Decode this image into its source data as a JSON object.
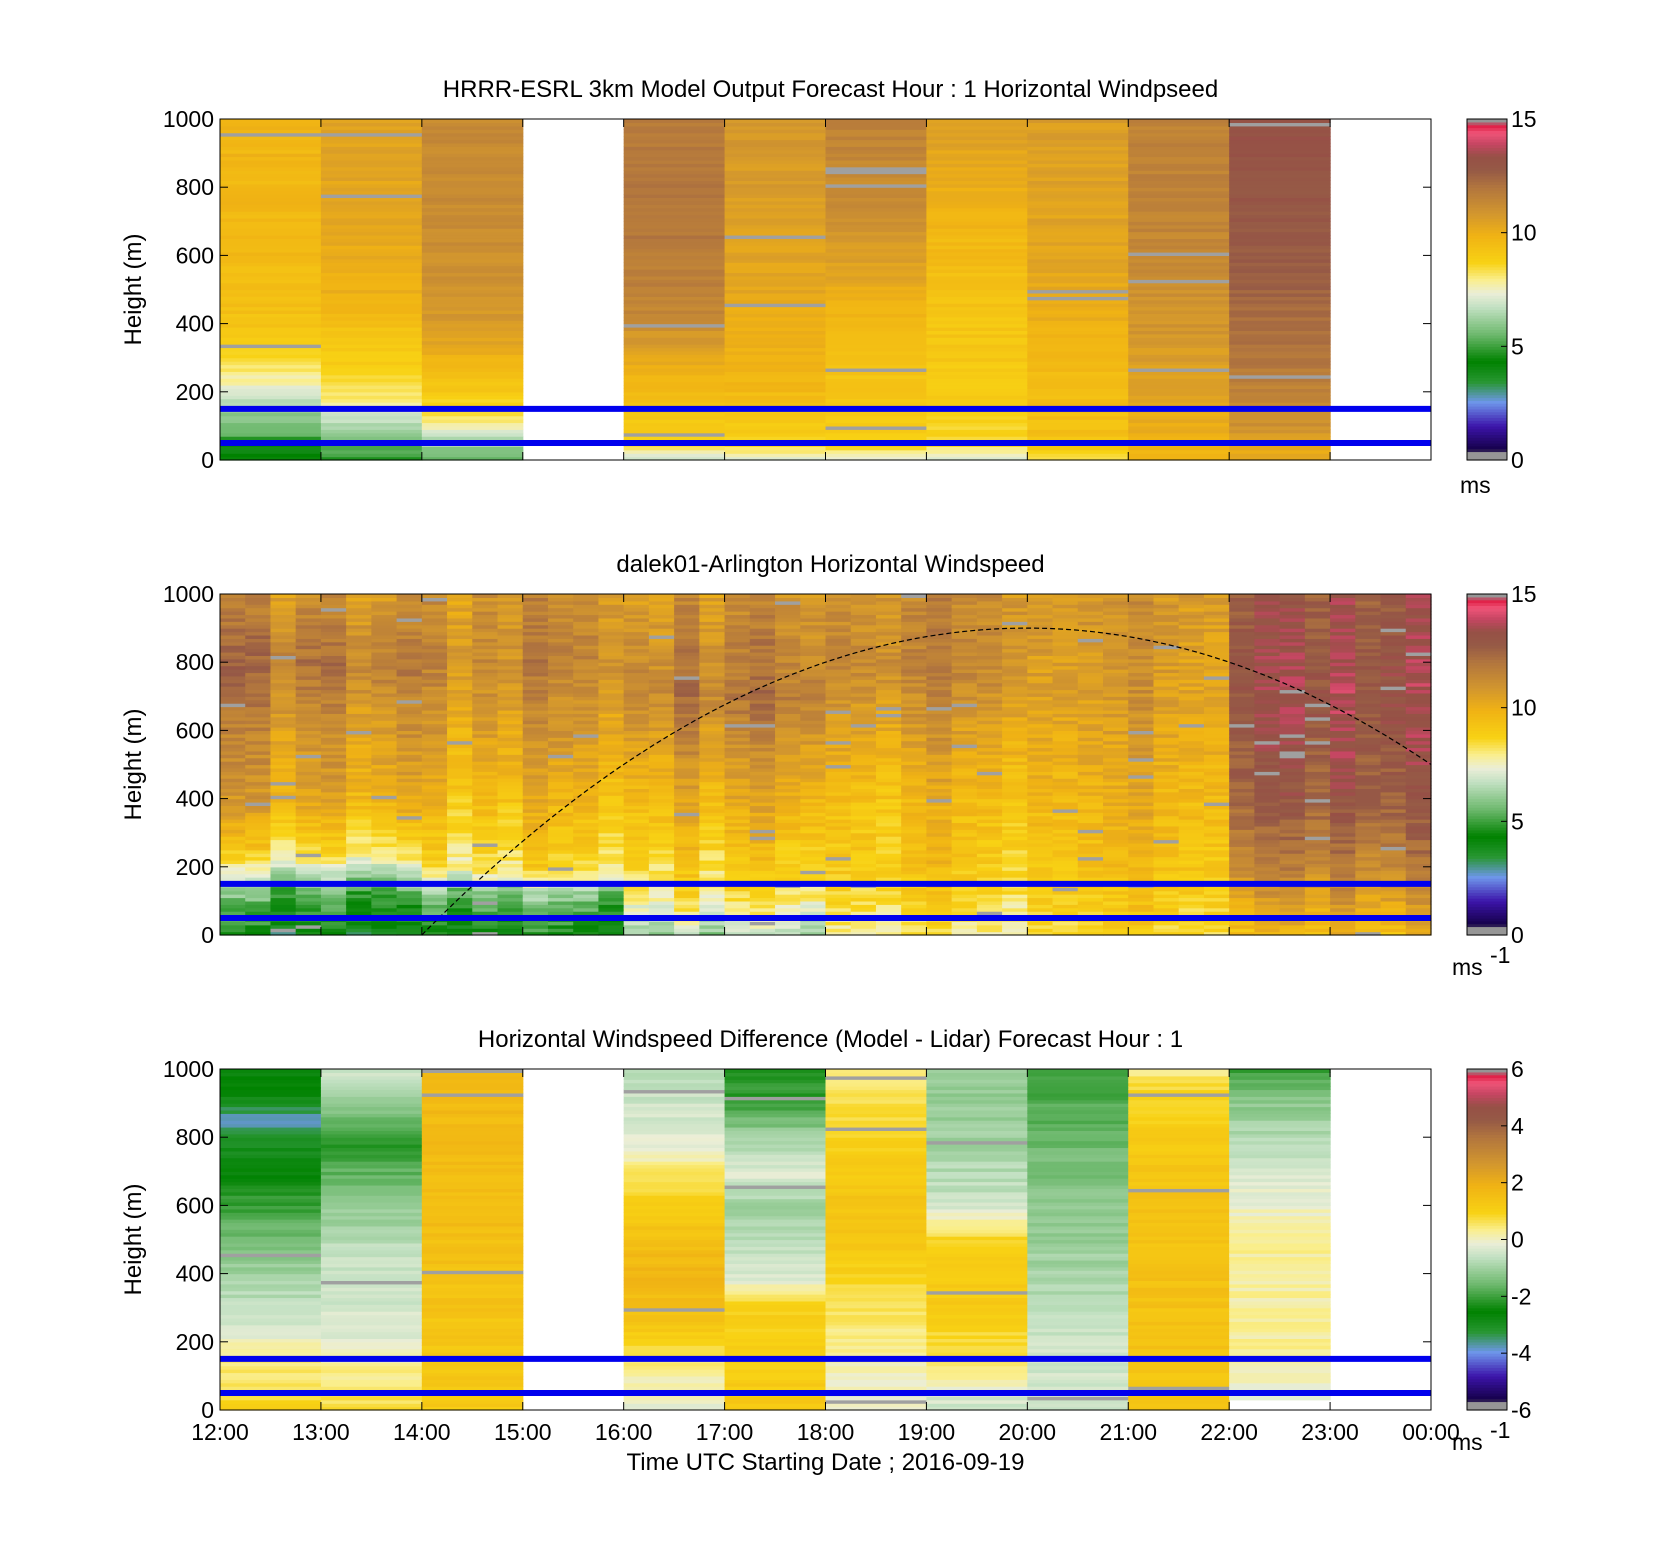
{
  "chart_data": [
    {
      "type": "heatmap",
      "title": "HRRR-ESRL 3km Model Output   Forecast Hour : 1 Horizontal Windpseed",
      "ylabel": "Height (m)",
      "xlabel": "",
      "ylim": [
        0,
        1000
      ],
      "yticks": [
        "0",
        "200",
        "400",
        "600",
        "800",
        "1000"
      ],
      "xlim_hours_utc": [
        12,
        24
      ],
      "colorbar": {
        "min": 0,
        "max": 15,
        "ticks": [
          "0",
          "5",
          "10",
          "15"
        ],
        "unit_label": "ms",
        "unit_sup": ""
      },
      "reference_lines_m": [
        150,
        50
      ],
      "reference_line_color": "#0000ee",
      "columns": [
        {
          "start": "12:00",
          "end": "13:00",
          "bottom_m": 0,
          "top_m": 1000,
          "profile": [
            [
              0,
              4.5
            ],
            [
              40,
              4.0
            ],
            [
              80,
              5.5
            ],
            [
              150,
              6.2
            ],
            [
              210,
              7.4
            ],
            [
              260,
              8.0
            ],
            [
              320,
              8.8
            ],
            [
              400,
              9.3
            ],
            [
              600,
              9.6
            ],
            [
              1000,
              9.8
            ]
          ]
        },
        {
          "start": "13:00",
          "end": "14:00",
          "bottom_m": 0,
          "top_m": 1000,
          "profile": [
            [
              0,
              4.8
            ],
            [
              60,
              5.6
            ],
            [
              130,
              7.0
            ],
            [
              190,
              8.2
            ],
            [
              260,
              8.8
            ],
            [
              350,
              9.2
            ],
            [
              500,
              10.0
            ],
            [
              1000,
              10.5
            ]
          ]
        },
        {
          "start": "14:00",
          "end": "15:00",
          "bottom_m": 0,
          "top_m": 1000,
          "profile": [
            [
              0,
              5.5
            ],
            [
              60,
              6.5
            ],
            [
              110,
              8.0
            ],
            [
              180,
              8.8
            ],
            [
              260,
              9.6
            ],
            [
              400,
              10.8
            ],
            [
              700,
              11.2
            ],
            [
              1000,
              11.3
            ]
          ]
        },
        {
          "start": "16:00",
          "end": "17:00",
          "bottom_m": 0,
          "top_m": 1000,
          "profile": [
            [
              0,
              6.5
            ],
            [
              40,
              8.6
            ],
            [
              120,
              9.2
            ],
            [
              230,
              9.8
            ],
            [
              360,
              10.8
            ],
            [
              450,
              11.5
            ],
            [
              700,
              12.0
            ],
            [
              1000,
              11.8
            ]
          ]
        },
        {
          "start": "17:00",
          "end": "18:00",
          "bottom_m": 0,
          "top_m": 1000,
          "profile": [
            [
              0,
              7.2
            ],
            [
              50,
              8.8
            ],
            [
              200,
              9.6
            ],
            [
              400,
              10.1
            ],
            [
              700,
              10.6
            ],
            [
              1000,
              10.8
            ]
          ]
        },
        {
          "start": "18:00",
          "end": "19:00",
          "bottom_m": 0,
          "top_m": 1000,
          "profile": [
            [
              0,
              7.3
            ],
            [
              50,
              8.8
            ],
            [
              250,
              9.3
            ],
            [
              450,
              9.9
            ],
            [
              600,
              10.6
            ],
            [
              750,
              11.2
            ],
            [
              1000,
              11.6
            ]
          ]
        },
        {
          "start": "19:00",
          "end": "20:00",
          "bottom_m": 0,
          "top_m": 1000,
          "profile": [
            [
              0,
              7.0
            ],
            [
              50,
              8.6
            ],
            [
              200,
              9.0
            ],
            [
              450,
              9.2
            ],
            [
              700,
              9.8
            ],
            [
              900,
              10.3
            ],
            [
              1000,
              10.6
            ]
          ]
        },
        {
          "start": "20:00",
          "end": "21:00",
          "bottom_m": 0,
          "top_m": 1000,
          "profile": [
            [
              0,
              8.3
            ],
            [
              60,
              9.3
            ],
            [
              250,
              9.6
            ],
            [
              550,
              10.3
            ],
            [
              1000,
              10.6
            ]
          ]
        },
        {
          "start": "21:00",
          "end": "22:00",
          "bottom_m": 0,
          "top_m": 1000,
          "profile": [
            [
              0,
              9.6
            ],
            [
              100,
              10.1
            ],
            [
              400,
              10.9
            ],
            [
              700,
              11.5
            ],
            [
              1000,
              11.6
            ]
          ]
        },
        {
          "start": "22:00",
          "end": "23:00",
          "bottom_m": 0,
          "top_m": 1000,
          "profile": [
            [
              0,
              10.0
            ],
            [
              100,
              11.0
            ],
            [
              300,
              12.0
            ],
            [
              450,
              12.3
            ],
            [
              600,
              12.8
            ],
            [
              1000,
              13.2
            ]
          ]
        }
      ]
    },
    {
      "type": "heatmap",
      "title": "dalek01-Arlington  Horizontal Windspeed",
      "ylabel": "Height (m)",
      "xlabel": "",
      "ylim": [
        0,
        1000
      ],
      "yticks": [
        "0",
        "200",
        "400",
        "600",
        "800",
        "1000"
      ],
      "xlim_hours_utc": [
        12,
        24
      ],
      "colorbar": {
        "min": 0,
        "max": 15,
        "ticks": [
          "0",
          "5",
          "10",
          "15"
        ],
        "unit_label": "ms",
        "unit_sup": "-1"
      },
      "reference_lines_m": [
        150,
        50
      ],
      "reference_line_color": "#0000ee",
      "boundary_layer_curve": {
        "start": "14:00",
        "peak_time": "20:00",
        "peak_m": 900,
        "end_height_m": 450
      },
      "slots_per_hour": 4,
      "column_groups": [
        {
          "start": "12:00",
          "end": "14:00",
          "profile": [
            [
              0,
              4.0
            ],
            [
              100,
              5.0
            ],
            [
              170,
              6.5
            ],
            [
              250,
              8.6
            ],
            [
              400,
              10.3
            ],
            [
              600,
              11.0
            ],
            [
              800,
              12.0
            ],
            [
              1000,
              11.0
            ]
          ]
        },
        {
          "start": "14:00",
          "end": "16:00",
          "profile": [
            [
              0,
              4.2
            ],
            [
              120,
              5.8
            ],
            [
              200,
              8.4
            ],
            [
              400,
              9.6
            ],
            [
              600,
              10.6
            ],
            [
              800,
              11.3
            ],
            [
              1000,
              11.0
            ]
          ]
        },
        {
          "start": "16:00",
          "end": "18:00",
          "profile": [
            [
              0,
              6.5
            ],
            [
              120,
              8.4
            ],
            [
              300,
              9.5
            ],
            [
              500,
              10.6
            ],
            [
              700,
              11.8
            ],
            [
              900,
              11.3
            ],
            [
              1000,
              11.0
            ]
          ]
        },
        {
          "start": "18:00",
          "end": "20:00",
          "profile": [
            [
              0,
              8.0
            ],
            [
              150,
              9.0
            ],
            [
              400,
              9.6
            ],
            [
              600,
              10.6
            ],
            [
              800,
              11.5
            ],
            [
              1000,
              11.2
            ]
          ]
        },
        {
          "start": "20:00",
          "end": "22:00",
          "profile": [
            [
              0,
              9.0
            ],
            [
              150,
              9.6
            ],
            [
              400,
              10.2
            ],
            [
              700,
              11.0
            ],
            [
              1000,
              11.3
            ]
          ]
        },
        {
          "start": "22:00",
          "end": "00:00",
          "profile": [
            [
              0,
              9.8
            ],
            [
              200,
              11.8
            ],
            [
              400,
              13.0
            ],
            [
              700,
              13.6
            ],
            [
              1000,
              13.2
            ]
          ]
        }
      ]
    },
    {
      "type": "heatmap",
      "title": "Horizontal Windspeed Difference (Model - Lidar) Forecast Hour : 1",
      "ylabel": "Height (m)",
      "xlabel": "Time UTC  Starting Date ; 2016-09-19",
      "ylim": [
        0,
        1000
      ],
      "yticks": [
        "0",
        "200",
        "400",
        "600",
        "800",
        "1000"
      ],
      "xticks": [
        "12:00",
        "13:00",
        "14:00",
        "15:00",
        "16:00",
        "17:00",
        "18:00",
        "19:00",
        "20:00",
        "21:00",
        "22:00",
        "23:00",
        "00:00"
      ],
      "xlim_hours_utc": [
        12,
        24
      ],
      "colorbar": {
        "min": -6,
        "max": 6,
        "ticks": [
          "-6",
          "-4",
          "-2",
          "0",
          "2",
          "4",
          "6"
        ],
        "unit_label": "ms",
        "unit_sup": "-1"
      },
      "reference_lines_m": [
        150,
        50
      ],
      "reference_line_color": "#0000ee",
      "columns": [
        {
          "start": "12:00",
          "end": "13:00",
          "bottom_m": 0,
          "top_m": 1000,
          "profile": [
            [
              0,
              1.0
            ],
            [
              80,
              0.6
            ],
            [
              150,
              0.4
            ],
            [
              230,
              -0.2
            ],
            [
              300,
              -0.6
            ],
            [
              450,
              -1.2
            ],
            [
              600,
              -2.0
            ],
            [
              700,
              -2.6
            ],
            [
              790,
              -3.0
            ],
            [
              850,
              -3.8
            ],
            [
              950,
              -2.4
            ],
            [
              1000,
              -2.8
            ]
          ]
        },
        {
          "start": "13:00",
          "end": "14:00",
          "bottom_m": 0,
          "top_m": 1000,
          "profile": [
            [
              0,
              0.8
            ],
            [
              100,
              0.4
            ],
            [
              200,
              -0.2
            ],
            [
              300,
              -0.4
            ],
            [
              450,
              -0.5
            ],
            [
              600,
              -1.2
            ],
            [
              800,
              -2.2
            ],
            [
              900,
              -1.0
            ],
            [
              1000,
              -0.4
            ]
          ]
        },
        {
          "start": "14:00",
          "end": "15:00",
          "bottom_m": 0,
          "top_m": 1000,
          "profile": [
            [
              0,
              1.2
            ],
            [
              300,
              1.4
            ],
            [
              600,
              1.6
            ],
            [
              900,
              1.7
            ],
            [
              1000,
              1.6
            ]
          ]
        },
        {
          "start": "16:00",
          "end": "17:00",
          "bottom_m": 0,
          "top_m": 1000,
          "profile": [
            [
              0,
              -0.2
            ],
            [
              120,
              0.3
            ],
            [
              250,
              1.4
            ],
            [
              400,
              1.8
            ],
            [
              600,
              1.2
            ],
            [
              800,
              -0.3
            ],
            [
              1000,
              -0.7
            ]
          ]
        },
        {
          "start": "17:00",
          "end": "18:00",
          "bottom_m": 0,
          "top_m": 1000,
          "profile": [
            [
              0,
              1.2
            ],
            [
              300,
              1.0
            ],
            [
              400,
              -0.4
            ],
            [
              600,
              -1.0
            ],
            [
              700,
              -0.2
            ],
            [
              800,
              -1.0
            ],
            [
              900,
              -2.0
            ],
            [
              1000,
              -2.3
            ]
          ]
        },
        {
          "start": "18:00",
          "end": "19:00",
          "bottom_m": 0,
          "top_m": 1000,
          "profile": [
            [
              0,
              -0.2
            ],
            [
              150,
              0.2
            ],
            [
              300,
              0.6
            ],
            [
              450,
              1.2
            ],
            [
              600,
              1.4
            ],
            [
              800,
              0.9
            ],
            [
              1000,
              0.4
            ]
          ]
        },
        {
          "start": "19:00",
          "end": "20:00",
          "bottom_m": 0,
          "top_m": 1000,
          "profile": [
            [
              0,
              -0.6
            ],
            [
              150,
              0.6
            ],
            [
              300,
              1.2
            ],
            [
              500,
              1.0
            ],
            [
              600,
              -0.5
            ],
            [
              800,
              -1.0
            ],
            [
              1000,
              -1.2
            ]
          ]
        },
        {
          "start": "20:00",
          "end": "21:00",
          "bottom_m": 0,
          "top_m": 1000,
          "profile": [
            [
              0,
              -0.4
            ],
            [
              200,
              -0.5
            ],
            [
              400,
              -0.9
            ],
            [
              600,
              -1.2
            ],
            [
              800,
              -1.6
            ],
            [
              1000,
              -2.0
            ]
          ]
        },
        {
          "start": "21:00",
          "end": "22:00",
          "bottom_m": 0,
          "top_m": 1000,
          "profile": [
            [
              0,
              1.3
            ],
            [
              400,
              1.5
            ],
            [
              600,
              1.4
            ],
            [
              800,
              1.2
            ],
            [
              950,
              0.8
            ],
            [
              1000,
              0.3
            ]
          ]
        },
        {
          "start": "22:00",
          "end": "23:00",
          "bottom_m": 30,
          "top_m": 1000,
          "profile": [
            [
              30,
              -0.2
            ],
            [
              150,
              0.3
            ],
            [
              300,
              0.2
            ],
            [
              500,
              0.3
            ],
            [
              700,
              -0.4
            ],
            [
              900,
              -1.2
            ],
            [
              1000,
              -2.0
            ]
          ]
        }
      ]
    }
  ]
}
